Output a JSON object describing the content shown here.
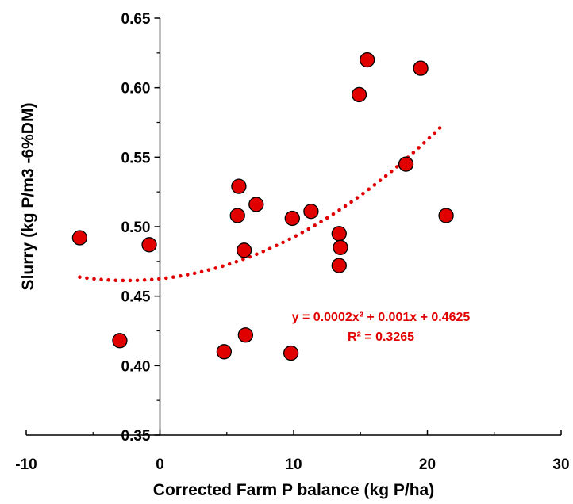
{
  "chart_data": {
    "type": "scatter",
    "title": "",
    "xlabel": "Corrected Farm P balance (kg P/ha)",
    "ylabel": "Slurry (kg P/m3 -6%DM)",
    "xlim": [
      -10,
      30
    ],
    "ylim": [
      0.35,
      0.65
    ],
    "x_ticks": [
      -10,
      0,
      10,
      20,
      30
    ],
    "x_tick_labels": [
      "-10",
      "0",
      "10",
      "20",
      "30"
    ],
    "y_ticks": [
      0.35,
      0.4,
      0.45,
      0.5,
      0.55,
      0.6,
      0.65
    ],
    "y_tick_labels": [
      "0.35",
      "0.40",
      "0.45",
      "0.50",
      "0.55",
      "0.60",
      "0.65"
    ],
    "grid": false,
    "legend": "none",
    "series": [
      {
        "marker_color": "#e00000",
        "marker_edge": "#000000",
        "points": [
          {
            "x": -6.0,
            "y": 0.492
          },
          {
            "x": -3.0,
            "y": 0.418
          },
          {
            "x": -0.8,
            "y": 0.487
          },
          {
            "x": 4.8,
            "y": 0.41
          },
          {
            "x": 5.9,
            "y": 0.529
          },
          {
            "x": 5.8,
            "y": 0.508
          },
          {
            "x": 6.3,
            "y": 0.483
          },
          {
            "x": 6.4,
            "y": 0.422
          },
          {
            "x": 7.2,
            "y": 0.516
          },
          {
            "x": 9.8,
            "y": 0.409
          },
          {
            "x": 9.9,
            "y": 0.506
          },
          {
            "x": 11.3,
            "y": 0.511
          },
          {
            "x": 13.4,
            "y": 0.495
          },
          {
            "x": 13.5,
            "y": 0.485
          },
          {
            "x": 13.4,
            "y": 0.472
          },
          {
            "x": 14.9,
            "y": 0.595
          },
          {
            "x": 15.5,
            "y": 0.62
          },
          {
            "x": 18.4,
            "y": 0.545
          },
          {
            "x": 19.5,
            "y": 0.614
          },
          {
            "x": 21.4,
            "y": 0.508
          }
        ]
      }
    ],
    "trendline": {
      "type": "polynomial-2",
      "coefficients": {
        "a": 0.0002,
        "b": 0.001,
        "c": 0.4625
      },
      "x_range": [
        -6,
        21.4
      ],
      "color": "#e00000",
      "style": "dotted"
    },
    "annotations": {
      "equation": "y = 0.0002x² + 0.001x + 0.4625",
      "r_squared": "R² = 0.3265",
      "color": "#e00000"
    }
  }
}
